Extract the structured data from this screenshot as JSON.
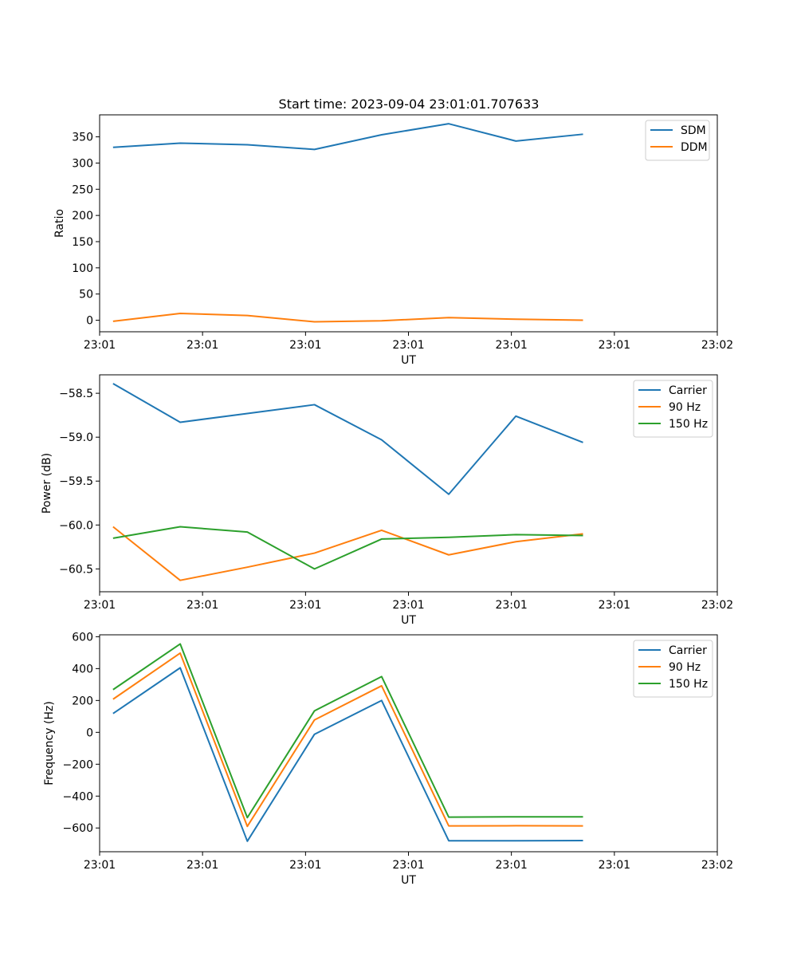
{
  "figure_title": "Start time: 2023-09-04 23:01:01.707633",
  "colors": {
    "blue": "#1f77b4",
    "orange": "#ff7f0e",
    "green": "#2ca02c"
  },
  "chart_data": [
    {
      "type": "line",
      "title": "Start time: 2023-09-04 23:01:01.707633",
      "xlabel": "UT",
      "ylabel": "Ratio",
      "x": [
        1,
        2,
        3,
        4,
        5,
        6,
        7,
        8
      ],
      "xlim": [
        0.8,
        10.0
      ],
      "xticks": [
        0.8,
        2.333,
        3.867,
        5.4,
        6.933,
        8.467,
        10.0
      ],
      "xtick_labels": [
        "23:01",
        "23:01",
        "23:01",
        "23:01",
        "23:01",
        "23:01",
        "23:02"
      ],
      "ylim": [
        -22,
        392
      ],
      "yticks": [
        0,
        50,
        100,
        150,
        200,
        250,
        300,
        350
      ],
      "ytick_labels": [
        "0",
        "50",
        "100",
        "150",
        "200",
        "250",
        "300",
        "350"
      ],
      "legend_position": "upper right",
      "series": [
        {
          "name": "SDM",
          "color": "#1f77b4",
          "values": [
            330,
            338,
            335,
            326,
            354,
            375,
            342,
            355
          ]
        },
        {
          "name": "DDM",
          "color": "#ff7f0e",
          "values": [
            -2,
            13,
            9,
            -3,
            -1,
            5,
            2,
            0
          ]
        }
      ]
    },
    {
      "type": "line",
      "xlabel": "UT",
      "ylabel": "Power (dB)",
      "x": [
        1,
        2,
        3,
        4,
        5,
        6,
        7,
        8
      ],
      "xlim": [
        0.8,
        10.0
      ],
      "xticks": [
        0.8,
        2.333,
        3.867,
        5.4,
        6.933,
        8.467,
        10.0
      ],
      "xtick_labels": [
        "23:01",
        "23:01",
        "23:01",
        "23:01",
        "23:01",
        "23:01",
        "23:02"
      ],
      "ylim": [
        -60.76,
        -58.29
      ],
      "yticks": [
        -58.5,
        -59.0,
        -59.5,
        -60.0,
        -60.5
      ],
      "ytick_labels": [
        "−58.5",
        "−59.0",
        "−59.5",
        "−60.0",
        "−60.5"
      ],
      "legend_position": "upper right",
      "series": [
        {
          "name": "Carrier",
          "color": "#1f77b4",
          "values": [
            -58.39,
            -58.83,
            -58.73,
            -58.63,
            -59.03,
            -59.65,
            -58.76,
            -59.06
          ]
        },
        {
          "name": "90 Hz",
          "color": "#ff7f0e",
          "values": [
            -60.02,
            -60.63,
            -60.48,
            -60.32,
            -60.06,
            -60.34,
            -60.19,
            -60.1
          ]
        },
        {
          "name": "150 Hz",
          "color": "#2ca02c",
          "values": [
            -60.15,
            -60.02,
            -60.08,
            -60.5,
            -60.16,
            -60.14,
            -60.11,
            -60.12
          ]
        }
      ]
    },
    {
      "type": "line",
      "xlabel": "UT",
      "ylabel": "Frequency (Hz)",
      "x": [
        1,
        2,
        3,
        4,
        5,
        6,
        7,
        8
      ],
      "xlim": [
        0.8,
        10.0
      ],
      "xticks": [
        0.8,
        2.333,
        3.867,
        5.4,
        6.933,
        8.467,
        10.0
      ],
      "xtick_labels": [
        "23:01",
        "23:01",
        "23:01",
        "23:01",
        "23:01",
        "23:01",
        "23:02"
      ],
      "ylim": [
        -749,
        612
      ],
      "yticks": [
        600,
        400,
        200,
        0,
        -200,
        -400,
        -600
      ],
      "ytick_labels": [
        "600",
        "400",
        "200",
        "0",
        "−200",
        "−400",
        "−600"
      ],
      "legend_position": "upper right",
      "series": [
        {
          "name": "Carrier",
          "color": "#1f77b4",
          "values": [
            118,
            405,
            -683,
            -12,
            200,
            -680,
            -680,
            -679
          ]
        },
        {
          "name": "90 Hz",
          "color": "#ff7f0e",
          "values": [
            208,
            497,
            -590,
            78,
            292,
            -587,
            -586,
            -587
          ]
        },
        {
          "name": "150 Hz",
          "color": "#2ca02c",
          "values": [
            268,
            555,
            -535,
            135,
            350,
            -532,
            -530,
            -530
          ]
        }
      ]
    }
  ]
}
